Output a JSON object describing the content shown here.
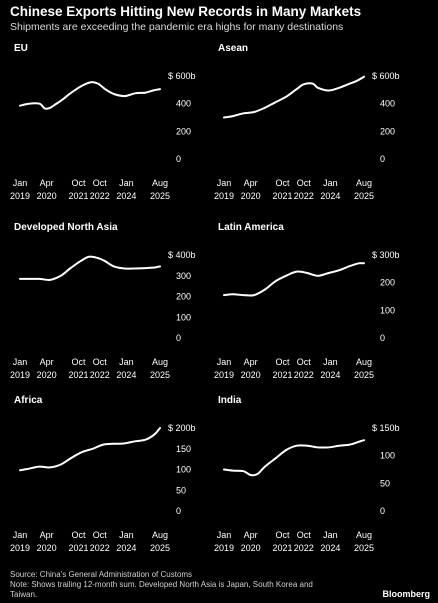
{
  "header": {
    "title": "Chinese Exports Hitting New Records in Many Markets",
    "subtitle": "Shipments are exceeding the pandemic era highs for many destinations"
  },
  "footer": {
    "source": "Source: China's General Administration of Customs",
    "note": "Note: Shows trailing 12-month sum. Developed North Asia is Japan, South Korea and Taiwan.",
    "brand": "Bloomberg"
  },
  "chart_data": [
    {
      "type": "line",
      "title": "EU",
      "x_ticks": [
        {
          "month": "Jan",
          "year": "2019"
        },
        {
          "month": "Apr",
          "year": "2020"
        },
        {
          "month": "Oct",
          "year": "2021"
        },
        {
          "month": "Oct",
          "year": "2022"
        },
        {
          "month": "Jan",
          "year": "2024"
        },
        {
          "month": "Aug",
          "year": "2025"
        }
      ],
      "xlim": [
        "2019-01",
        "2025-08"
      ],
      "y_ticks": [
        0,
        200,
        400,
        600
      ],
      "top_label": "$ 600b",
      "ylim": [
        0,
        600
      ],
      "series": [
        {
          "x": [
            "2019-01",
            "2019-06",
            "2019-12",
            "2020-03",
            "2020-06",
            "2020-09",
            "2021-01",
            "2021-06",
            "2021-12",
            "2022-05",
            "2022-09",
            "2023-01",
            "2023-06",
            "2023-12",
            "2024-06",
            "2024-12",
            "2025-04",
            "2025-08"
          ],
          "values": [
            385,
            400,
            400,
            365,
            370,
            395,
            430,
            480,
            530,
            555,
            545,
            505,
            470,
            455,
            475,
            480,
            495,
            505
          ]
        }
      ]
    },
    {
      "type": "line",
      "title": "Asean",
      "x_ticks": [
        {
          "month": "Jan",
          "year": "2019"
        },
        {
          "month": "Apr",
          "year": "2020"
        },
        {
          "month": "Oct",
          "year": "2021"
        },
        {
          "month": "Oct",
          "year": "2022"
        },
        {
          "month": "Jan",
          "year": "2024"
        },
        {
          "month": "Aug",
          "year": "2025"
        }
      ],
      "xlim": [
        "2019-01",
        "2025-08"
      ],
      "y_ticks": [
        0,
        200,
        400,
        600
      ],
      "top_label": "$ 600b",
      "ylim": [
        0,
        600
      ],
      "series": [
        {
          "x": [
            "2019-01",
            "2019-06",
            "2019-12",
            "2020-06",
            "2020-12",
            "2021-06",
            "2021-12",
            "2022-06",
            "2022-10",
            "2023-03",
            "2023-06",
            "2023-12",
            "2024-06",
            "2024-12",
            "2025-04",
            "2025-08"
          ],
          "values": [
            300,
            310,
            330,
            340,
            370,
            410,
            450,
            505,
            540,
            545,
            515,
            495,
            515,
            545,
            565,
            595
          ]
        }
      ]
    },
    {
      "type": "line",
      "title": "Developed North Asia",
      "x_ticks": [
        {
          "month": "Jan",
          "year": "2019"
        },
        {
          "month": "Apr",
          "year": "2020"
        },
        {
          "month": "Oct",
          "year": "2021"
        },
        {
          "month": "Oct",
          "year": "2022"
        },
        {
          "month": "Jan",
          "year": "2024"
        },
        {
          "month": "Aug",
          "year": "2025"
        }
      ],
      "xlim": [
        "2019-01",
        "2025-08"
      ],
      "y_ticks": [
        0,
        100,
        200,
        300,
        400
      ],
      "top_label": "$ 400b",
      "ylim": [
        0,
        400
      ],
      "series": [
        {
          "x": [
            "2019-01",
            "2019-06",
            "2019-12",
            "2020-06",
            "2020-12",
            "2021-06",
            "2021-12",
            "2022-04",
            "2022-09",
            "2023-01",
            "2023-06",
            "2023-12",
            "2024-06",
            "2024-12",
            "2025-05",
            "2025-08"
          ],
          "values": [
            285,
            285,
            285,
            280,
            300,
            340,
            375,
            392,
            385,
            370,
            345,
            335,
            335,
            337,
            340,
            345
          ]
        }
      ]
    },
    {
      "type": "line",
      "title": "Latin America",
      "x_ticks": [
        {
          "month": "Jan",
          "year": "2019"
        },
        {
          "month": "Apr",
          "year": "2020"
        },
        {
          "month": "Oct",
          "year": "2021"
        },
        {
          "month": "Oct",
          "year": "2022"
        },
        {
          "month": "Jan",
          "year": "2024"
        },
        {
          "month": "Aug",
          "year": "2025"
        }
      ],
      "xlim": [
        "2019-01",
        "2025-08"
      ],
      "y_ticks": [
        0,
        100,
        200,
        300
      ],
      "top_label": "$ 300b",
      "ylim": [
        0,
        300
      ],
      "series": [
        {
          "x": [
            "2019-01",
            "2019-06",
            "2019-12",
            "2020-06",
            "2020-12",
            "2021-06",
            "2021-12",
            "2022-06",
            "2022-12",
            "2023-06",
            "2023-12",
            "2024-06",
            "2024-12",
            "2025-05",
            "2025-08"
          ],
          "values": [
            155,
            158,
            155,
            155,
            175,
            205,
            225,
            240,
            235,
            225,
            235,
            245,
            260,
            270,
            270
          ]
        }
      ]
    },
    {
      "type": "line",
      "title": "Africa",
      "x_ticks": [
        {
          "month": "Jan",
          "year": "2019"
        },
        {
          "month": "Apr",
          "year": "2020"
        },
        {
          "month": "Oct",
          "year": "2021"
        },
        {
          "month": "Oct",
          "year": "2022"
        },
        {
          "month": "Jan",
          "year": "2024"
        },
        {
          "month": "Aug",
          "year": "2025"
        }
      ],
      "xlim": [
        "2019-01",
        "2025-08"
      ],
      "y_ticks": [
        0,
        50,
        100,
        150,
        200
      ],
      "top_label": "$ 200b",
      "ylim": [
        0,
        200
      ],
      "series": [
        {
          "x": [
            "2019-01",
            "2019-06",
            "2019-12",
            "2020-06",
            "2020-12",
            "2021-06",
            "2021-12",
            "2022-06",
            "2022-12",
            "2023-06",
            "2023-12",
            "2024-06",
            "2024-12",
            "2025-05",
            "2025-08"
          ],
          "values": [
            98,
            102,
            107,
            105,
            112,
            128,
            142,
            150,
            160,
            162,
            163,
            168,
            172,
            185,
            200
          ]
        }
      ]
    },
    {
      "type": "line",
      "title": "India",
      "x_ticks": [
        {
          "month": "Jan",
          "year": "2019"
        },
        {
          "month": "Apr",
          "year": "2020"
        },
        {
          "month": "Oct",
          "year": "2021"
        },
        {
          "month": "Oct",
          "year": "2022"
        },
        {
          "month": "Jan",
          "year": "2024"
        },
        {
          "month": "Aug",
          "year": "2025"
        }
      ],
      "xlim": [
        "2019-01",
        "2025-08"
      ],
      "y_ticks": [
        0,
        50,
        100,
        150
      ],
      "top_label": "$ 150b",
      "ylim": [
        0,
        150
      ],
      "series": [
        {
          "x": [
            "2019-01",
            "2019-06",
            "2019-12",
            "2020-04",
            "2020-08",
            "2020-12",
            "2021-06",
            "2021-12",
            "2022-06",
            "2022-12",
            "2023-06",
            "2023-12",
            "2024-06",
            "2024-12",
            "2025-05",
            "2025-08"
          ],
          "values": [
            75,
            73,
            72,
            65,
            67,
            80,
            95,
            110,
            118,
            118,
            115,
            115,
            118,
            120,
            125,
            128
          ]
        }
      ]
    }
  ]
}
